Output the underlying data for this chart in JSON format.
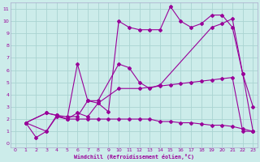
{
  "xlabel": "Windchill (Refroidissement éolien,°C)",
  "bg_color": "#ccecea",
  "grid_color": "#aad4d2",
  "line_color": "#990099",
  "xlim_min": -0.5,
  "xlim_max": 23.4,
  "ylim_min": -0.3,
  "ylim_max": 11.5,
  "xticks": [
    0,
    1,
    2,
    3,
    4,
    5,
    6,
    7,
    8,
    9,
    10,
    11,
    12,
    13,
    14,
    15,
    16,
    17,
    18,
    19,
    20,
    21,
    22,
    23
  ],
  "yticks": [
    0,
    1,
    2,
    3,
    4,
    5,
    6,
    7,
    8,
    9,
    10,
    11
  ],
  "s1_x": [
    1,
    2,
    3,
    4,
    5,
    6,
    7,
    8,
    9,
    10,
    11,
    12,
    13,
    14,
    15,
    16,
    17,
    18,
    19,
    20,
    21,
    22,
    23
  ],
  "s1_y": [
    1.7,
    0.5,
    1.0,
    2.3,
    2.2,
    2.2,
    3.5,
    3.3,
    2.6,
    10.0,
    9.5,
    9.3,
    9.3,
    9.3,
    11.2,
    10.0,
    9.5,
    9.8,
    10.5,
    10.5,
    9.5,
    5.7,
    3.0
  ],
  "s2_x": [
    1,
    3,
    4,
    5,
    6,
    7,
    8,
    10,
    11,
    12,
    13,
    14,
    19,
    20,
    21,
    22,
    23
  ],
  "s2_y": [
    1.7,
    2.5,
    2.3,
    2.0,
    6.5,
    3.5,
    3.5,
    6.5,
    6.2,
    5.0,
    4.5,
    4.8,
    9.5,
    9.8,
    10.2,
    5.7,
    1.0
  ],
  "s3_x": [
    1,
    3,
    4,
    5,
    6,
    7,
    8,
    10,
    12,
    14,
    15,
    16,
    17,
    18,
    19,
    20,
    21,
    22,
    23
  ],
  "s3_y": [
    1.7,
    2.5,
    2.3,
    2.0,
    2.5,
    2.2,
    3.3,
    4.5,
    4.5,
    4.7,
    4.8,
    4.9,
    5.0,
    5.1,
    5.2,
    5.3,
    5.4,
    1.0,
    1.0
  ],
  "s4_x": [
    1,
    3,
    4,
    5,
    6,
    7,
    8,
    9,
    10,
    11,
    12,
    13,
    14,
    15,
    16,
    17,
    18,
    19,
    20,
    21,
    22,
    23
  ],
  "s4_y": [
    1.7,
    1.0,
    2.2,
    2.0,
    2.0,
    2.0,
    2.0,
    2.0,
    2.0,
    2.0,
    2.0,
    2.0,
    1.8,
    1.8,
    1.7,
    1.7,
    1.6,
    1.5,
    1.5,
    1.4,
    1.2,
    1.0
  ]
}
